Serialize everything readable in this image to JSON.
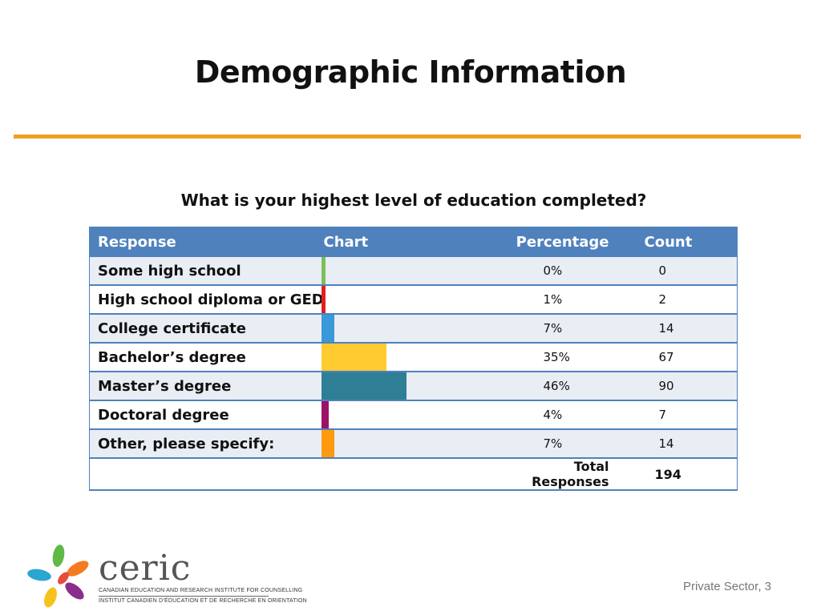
{
  "slide": {
    "title": "Demographic Information",
    "question": "What is your highest level of education completed?",
    "footer": "Private Sector, 3"
  },
  "table": {
    "headers": {
      "response": "Response",
      "chart": "Chart",
      "percentage": "Percentage",
      "count": "Count"
    },
    "rows": [
      {
        "response": "Some high school",
        "percentage": "0%",
        "count": "0",
        "color": "#7cc05a"
      },
      {
        "response": "High school diploma or GED",
        "percentage": "1%",
        "count": "2",
        "color": "#e02020"
      },
      {
        "response": "College certificate",
        "percentage": "7%",
        "count": "14",
        "color": "#3a9ad9"
      },
      {
        "response": "Bachelor’s degree",
        "percentage": "35%",
        "count": "67",
        "color": "#ffcb30"
      },
      {
        "response": "Master’s degree",
        "percentage": "46%",
        "count": "90",
        "color": "#2e7f96"
      },
      {
        "response": "Doctoral degree",
        "percentage": "4%",
        "count": "7",
        "color": "#9b1269"
      },
      {
        "response": "Other, please specify:",
        "percentage": "7%",
        "count": "14",
        "color": "#ff9a10"
      }
    ],
    "total_label": "Total Responses",
    "total_count": "194"
  },
  "chart_data": {
    "type": "bar",
    "categories": [
      "Some high school",
      "High school diploma or GED",
      "College certificate",
      "Bachelor’s degree",
      "Master’s degree",
      "Doctoral degree",
      "Other, please specify:"
    ],
    "values": [
      0,
      1,
      7,
      35,
      46,
      4,
      7
    ],
    "title": "What is your highest level of education completed?",
    "xlabel": "",
    "ylabel": "Percentage",
    "ylim": [
      0,
      100
    ]
  },
  "logo": {
    "word": "ceric",
    "line1": "CANADIAN EDUCATION AND RESEARCH INSTITUTE FOR COUNSELLING",
    "line2": "INSTITUT CANADIEN D’ÉDUCATION ET DE RECHERCHE EN ORIENTATION"
  }
}
